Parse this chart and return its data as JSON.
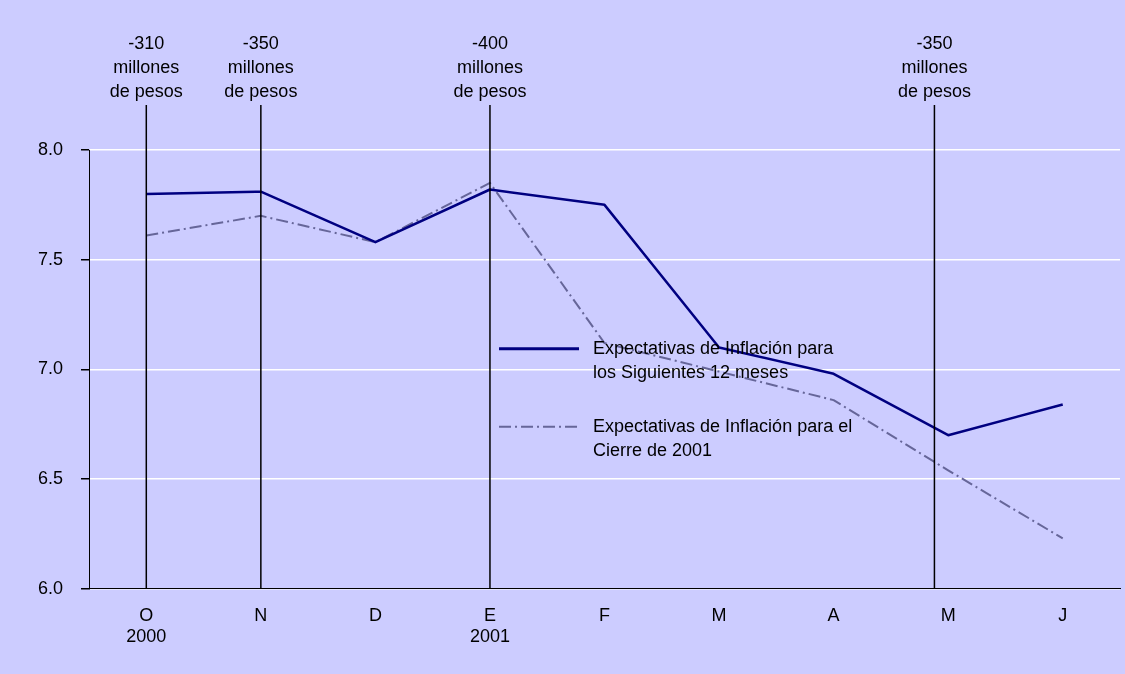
{
  "chart_data": {
    "type": "line",
    "categories": [
      "O\n2000",
      "N",
      "D",
      "E\n2001",
      "F",
      "M",
      "A",
      "M",
      "J"
    ],
    "series": [
      {
        "name": "Expectativas de Inflación para\nlos Siguientes 12 meses",
        "color": "#000080",
        "values": [
          7.8,
          7.81,
          7.58,
          7.82,
          7.75,
          7.1,
          6.98,
          6.7,
          6.84
        ],
        "line_style": "solid"
      },
      {
        "name": "Expectativas de Inflación para el\nCierre de 2001",
        "color": "#666699",
        "values": [
          7.61,
          7.7,
          7.58,
          7.85,
          7.12,
          6.99,
          6.86,
          6.54,
          6.23
        ],
        "line_style": "dashed"
      }
    ],
    "ylim": [
      6.0,
      8.0
    ],
    "yticks": [
      {
        "value": 6,
        "label": "6.0"
      },
      {
        "value": 6.5,
        "label": "6.5"
      },
      {
        "value": 7,
        "label": "7.0"
      },
      {
        "value": 7.5,
        "label": "7.5"
      },
      {
        "value": 8,
        "label": "8.0"
      }
    ],
    "grid": "y",
    "legend": "bottom right",
    "marker": "none",
    "ref_lines": [
      {
        "axis": "x",
        "value": "O\n2000",
        "label": "-310\nmillones\nde pesos",
        "color": "#000000"
      },
      {
        "axis": "x",
        "value": "N",
        "label": "-350\nmillones\nde pesos",
        "color": "#000000"
      },
      {
        "axis": "x",
        "value": "E\n2001",
        "label": "-400\nmillones\nde pesos",
        "color": "#000000"
      }
    ],
    "annotations": [
      "-350\nmillones\nde pesos"
    ]
  }
}
